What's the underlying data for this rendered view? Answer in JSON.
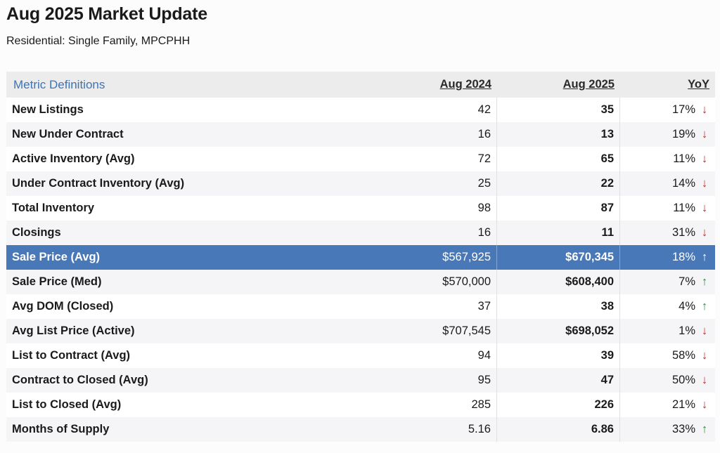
{
  "header": {
    "title": "Aug 2025 Market Update",
    "subtitle": "Residential: Single Family, MPCPHH"
  },
  "table": {
    "definitions_link": "Metric Definitions",
    "col_prev": "Aug 2024",
    "col_curr": "Aug 2025",
    "col_yoy": "YoY",
    "arrow_glyphs": {
      "down": "↓",
      "up": "↑"
    },
    "colors": {
      "down": "#c22b2b",
      "up": "#2a8c3a",
      "highlight": "#4978b8"
    },
    "rows": [
      {
        "label": "New Listings",
        "prev": "42",
        "curr": "35",
        "yoy": "17%",
        "dir": "down"
      },
      {
        "label": "New Under Contract",
        "prev": "16",
        "curr": "13",
        "yoy": "19%",
        "dir": "down"
      },
      {
        "label": "Active Inventory (Avg)",
        "prev": "72",
        "curr": "65",
        "yoy": "11%",
        "dir": "down"
      },
      {
        "label": "Under Contract Inventory (Avg)",
        "prev": "25",
        "curr": "22",
        "yoy": "14%",
        "dir": "down"
      },
      {
        "label": "Total Inventory",
        "prev": "98",
        "curr": "87",
        "yoy": "11%",
        "dir": "down"
      },
      {
        "label": "Closings",
        "prev": "16",
        "curr": "11",
        "yoy": "31%",
        "dir": "down"
      },
      {
        "label": "Sale Price (Avg)",
        "prev": "$567,925",
        "curr": "$670,345",
        "yoy": "18%",
        "dir": "up",
        "highlight": true
      },
      {
        "label": "Sale Price (Med)",
        "prev": "$570,000",
        "curr": "$608,400",
        "yoy": "7%",
        "dir": "up"
      },
      {
        "label": "Avg DOM (Closed)",
        "prev": "37",
        "curr": "38",
        "yoy": "4%",
        "dir": "up"
      },
      {
        "label": "Avg List Price (Active)",
        "prev": "$707,545",
        "curr": "$698,052",
        "yoy": "1%",
        "dir": "down"
      },
      {
        "label": "List to Contract (Avg)",
        "prev": "94",
        "curr": "39",
        "yoy": "58%",
        "dir": "down"
      },
      {
        "label": "Contract to Closed (Avg)",
        "prev": "95",
        "curr": "47",
        "yoy": "50%",
        "dir": "down"
      },
      {
        "label": "List to Closed (Avg)",
        "prev": "285",
        "curr": "226",
        "yoy": "21%",
        "dir": "down"
      },
      {
        "label": "Months of Supply",
        "prev": "5.16",
        "curr": "6.86",
        "yoy": "33%",
        "dir": "up"
      }
    ]
  }
}
